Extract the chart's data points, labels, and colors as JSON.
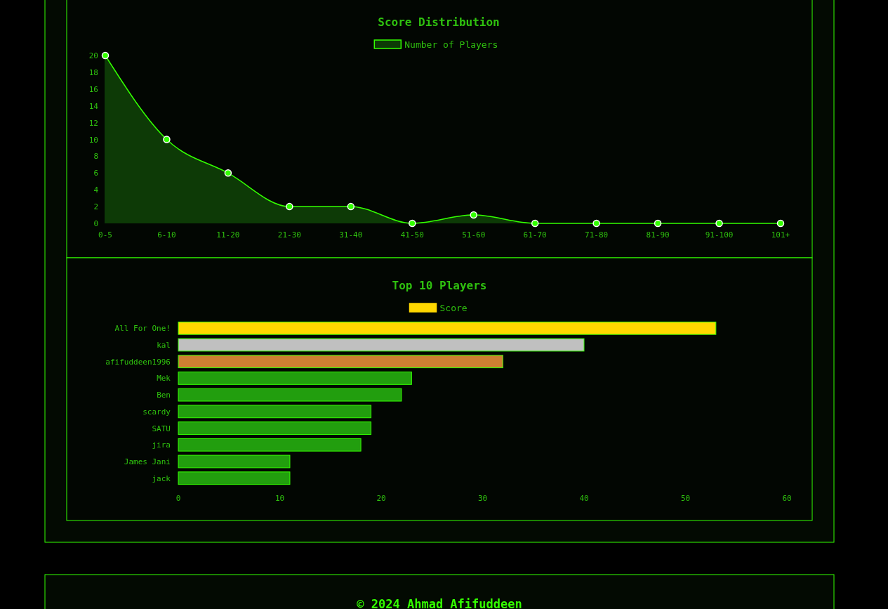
{
  "chart_data": [
    {
      "type": "area",
      "title": "Score Distribution",
      "categories": [
        "0-5",
        "6-10",
        "11-20",
        "21-30",
        "31-40",
        "41-50",
        "51-60",
        "61-70",
        "71-80",
        "81-90",
        "91-100",
        "101+"
      ],
      "series": [
        {
          "name": "Number of Players",
          "color": "#33ff00",
          "values": [
            20,
            10,
            6,
            2,
            2,
            0,
            1,
            0,
            0,
            0,
            0,
            0
          ]
        }
      ],
      "ylim": [
        0,
        20
      ],
      "yticks": [
        0,
        2,
        4,
        6,
        8,
        10,
        12,
        14,
        16,
        18,
        20
      ],
      "grid": false,
      "legend": "top",
      "marker": "circle"
    },
    {
      "type": "bar",
      "orientation": "horizontal",
      "title": "Top 10 Players",
      "categories": [
        "All For One!",
        "kal",
        "afifuddeen1996",
        "Mek",
        "Ben",
        "scardy",
        "SATU",
        "jira",
        "James Jani",
        "jack"
      ],
      "series": [
        {
          "name": "Score",
          "color": "#ffd700",
          "values": [
            53,
            40,
            32,
            23,
            22,
            19,
            19,
            18,
            11,
            11
          ],
          "colors": [
            "#ffd700",
            "#c0c0c0",
            "#cd7f32",
            "#229e0e",
            "#229e0e",
            "#229e0e",
            "#229e0e",
            "#229e0e",
            "#229e0e",
            "#229e0e"
          ]
        }
      ],
      "xlim": [
        0,
        60
      ],
      "xticks": [
        0,
        10,
        20,
        30,
        40,
        50,
        60
      ],
      "grid": false,
      "legend": "top",
      "annotations": [
        "© 2024 Ahmad Afifuddeen"
      ]
    }
  ]
}
